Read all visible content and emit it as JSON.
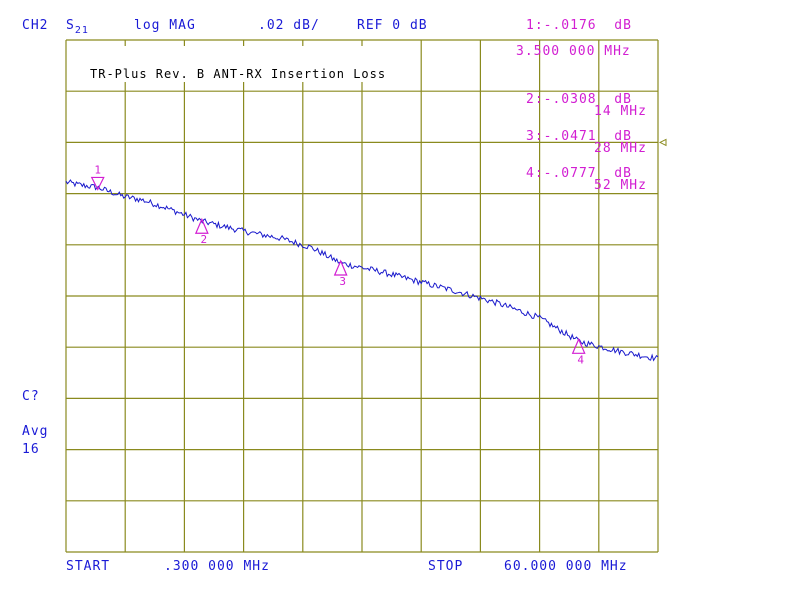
{
  "header": {
    "channel": "CH2",
    "param": "S",
    "param_sub": "21",
    "format": "log MAG",
    "scale": ".02 dB/",
    "ref": "REF 0 dB"
  },
  "title_box": "TR-Plus Rev. B ANT-RX Insertion Loss",
  "markers": [
    {
      "num": "1",
      "label": "1:",
      "value": "-.0176",
      "unit": "dB",
      "freq": "3.500 000 MHz",
      "freq_mhz": 3.5,
      "db": -0.0176
    },
    {
      "num": "2",
      "label": "2:",
      "value": "-.0308",
      "unit": "dB",
      "freq": "14 MHz",
      "freq_mhz": 14,
      "db": -0.0308
    },
    {
      "num": "3",
      "label": "3:",
      "value": "-.0471",
      "unit": "dB",
      "freq": "28 MHz",
      "freq_mhz": 28,
      "db": -0.0471
    },
    {
      "num": "4",
      "label": "4:",
      "value": "-.0777",
      "unit": "dB",
      "freq": "52 MHz",
      "freq_mhz": 52,
      "db": -0.0777
    }
  ],
  "side": {
    "cal": "C?",
    "avg": "Avg",
    "avg_n": "16"
  },
  "footer": {
    "start_label": "START",
    "start_value": ".300 000 MHz",
    "stop_label": "STOP",
    "stop_value": "60.000 000 MHz"
  },
  "colors": {
    "grid": "#8a8a1e",
    "trace": "#1a1acc",
    "marker": "#d21ed2",
    "annotation": "#1a1ad6"
  },
  "chart_data": {
    "type": "line",
    "title": "TR-Plus Rev. B ANT-RX Insertion Loss",
    "xlabel": "",
    "ylabel": "",
    "x_start_mhz": 0.3,
    "x_stop_mhz": 60.0,
    "scale_db_per_div": 0.02,
    "ref_db": 0,
    "ylim": [
      -0.2,
      0.02
    ],
    "grid": true,
    "series": [
      {
        "x": [
          0.3,
          1.5,
          3.5,
          6,
          8,
          10,
          14,
          18,
          22,
          25,
          28,
          32,
          36,
          40,
          44,
          48,
          52,
          56,
          60
        ],
        "values": [
          -0.0155,
          -0.0165,
          -0.0176,
          -0.021,
          -0.0225,
          -0.025,
          -0.0308,
          -0.0345,
          -0.0375,
          -0.041,
          -0.0471,
          -0.0505,
          -0.0545,
          -0.0585,
          -0.063,
          -0.0685,
          -0.0777,
          -0.0815,
          -0.0845
        ]
      }
    ]
  }
}
